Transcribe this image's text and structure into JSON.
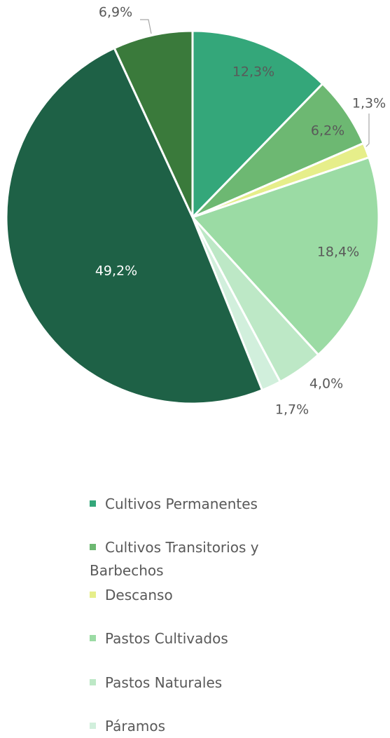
{
  "chart_data": {
    "type": "pie",
    "categories": [
      "Cultivos Permanentes",
      "Cultivos Transitorios y Barbechos",
      "Descanso",
      "Pastos Cultivados",
      "Pastos Naturales",
      "Páramos",
      null,
      null
    ],
    "values": [
      12.3,
      6.2,
      1.3,
      18.4,
      4.0,
      1.7,
      49.2,
      6.9
    ],
    "value_labels": [
      "12,3%",
      "6,2%",
      "1,3%",
      "18,4%",
      "4,0%",
      "1,7%",
      "49,2%",
      "6,9%"
    ],
    "colors": [
      "#34a77a",
      "#6db872",
      "#e6ee8a",
      "#9bdba4",
      "#bde8c6",
      "#d1efdc",
      "#1e6146",
      "#3a7a3b"
    ]
  }
}
